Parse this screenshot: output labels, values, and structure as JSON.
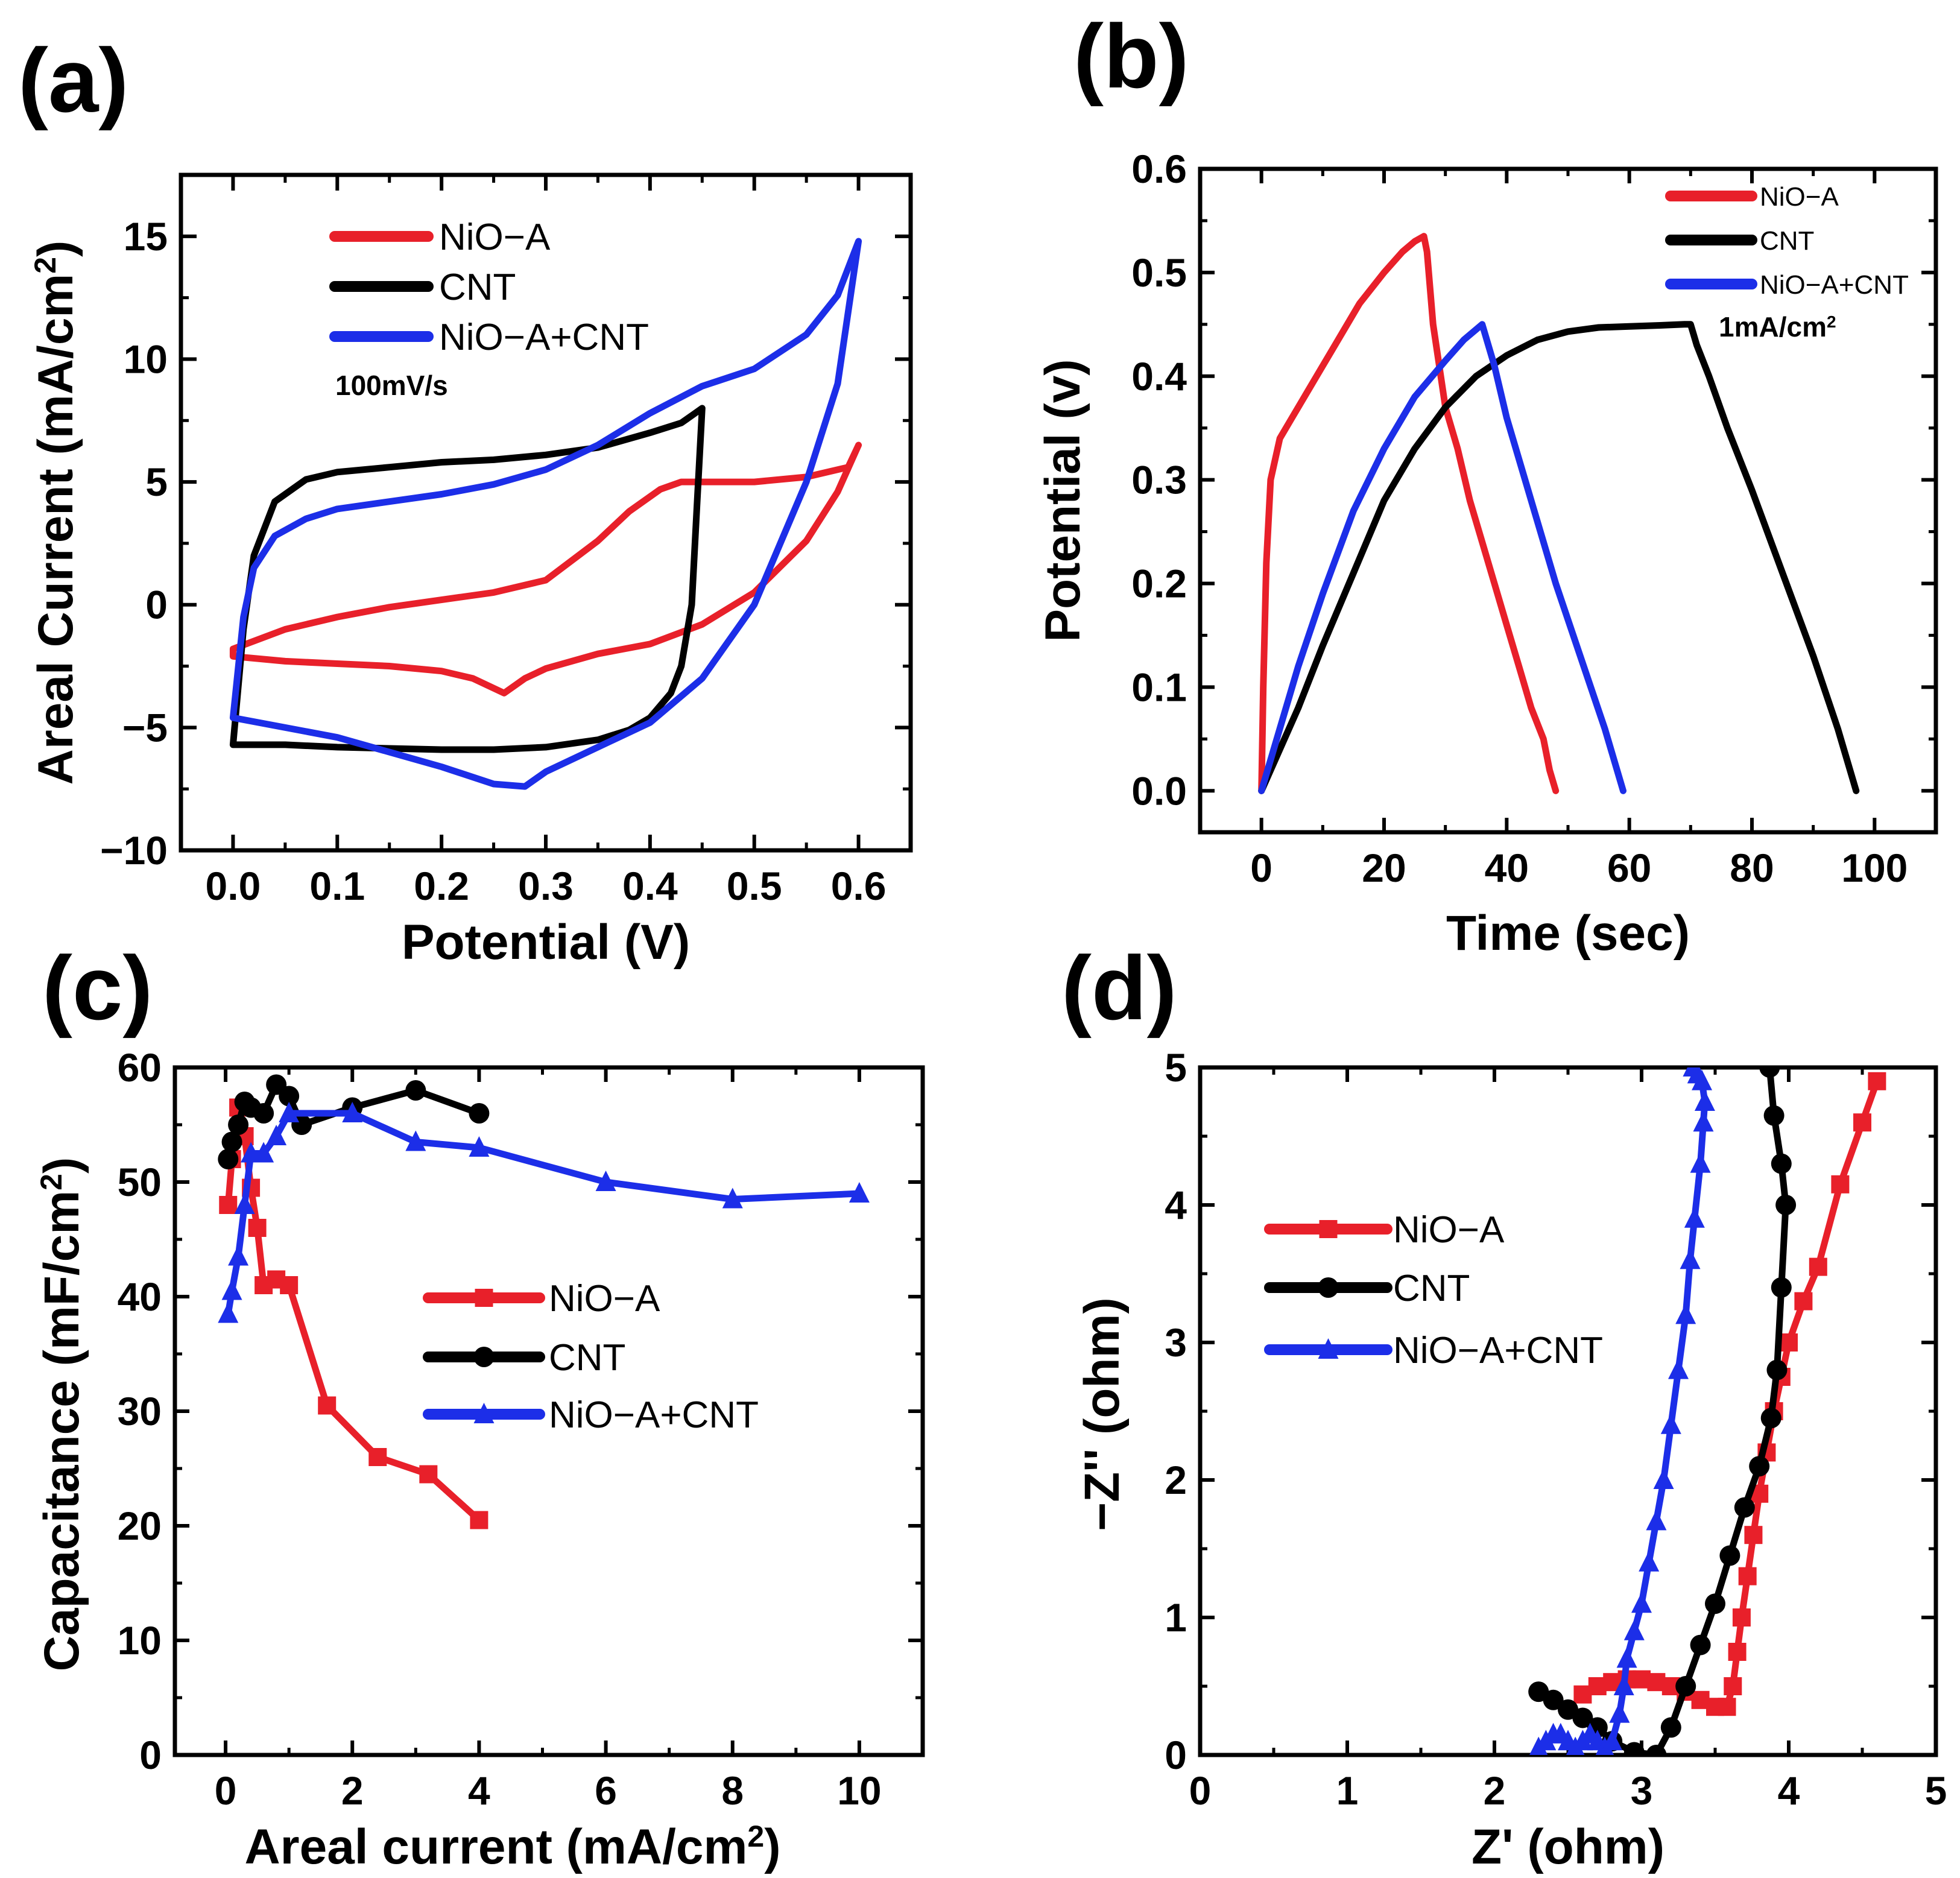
{
  "colors": {
    "red": "#e8202a",
    "black": "#000000",
    "blue": "#1c2ee8"
  },
  "panel_labels": [
    "(a)",
    "(b)",
    "(c)",
    "(d)"
  ],
  "chart_data": [
    {
      "id": "a",
      "type": "line",
      "xlabel": "Potential (V)",
      "ylabel": "Areal Current (mA/cm",
      "ylabel_sup": "2",
      "ylabel_end": ")",
      "xlim": [
        -0.05,
        0.65
      ],
      "ylim": [
        -10,
        17.5
      ],
      "xticks": [
        0.0,
        0.1,
        0.2,
        0.3,
        0.4,
        0.5,
        0.6
      ],
      "xtick_labels": [
        "0.0",
        "0.1",
        "0.2",
        "0.3",
        "0.4",
        "0.5",
        "0.6"
      ],
      "yticks": [
        -10,
        -5,
        0,
        5,
        10,
        15
      ],
      "ytick_labels": [
        "−10",
        "−5",
        "0",
        "5",
        "10",
        "15"
      ],
      "annotation": "100mV/s",
      "legend": [
        "NiO−A",
        "CNT",
        "NiO−A+CNT"
      ],
      "series": [
        {
          "name": "NiO−A",
          "color": "red",
          "closed": true,
          "x": [
            0.0,
            0.05,
            0.1,
            0.15,
            0.2,
            0.25,
            0.3,
            0.35,
            0.38,
            0.41,
            0.43,
            0.45,
            0.5,
            0.55,
            0.59,
            0.6,
            0.58,
            0.55,
            0.5,
            0.45,
            0.4,
            0.35,
            0.3,
            0.28,
            0.26,
            0.23,
            0.2,
            0.15,
            0.1,
            0.05,
            0.0
          ],
          "y": [
            -1.8,
            -1.0,
            -0.5,
            -0.1,
            0.2,
            0.5,
            1.0,
            2.6,
            3.8,
            4.7,
            5.0,
            5.0,
            5.0,
            5.2,
            5.6,
            6.5,
            4.6,
            2.6,
            0.5,
            -0.8,
            -1.6,
            -2.0,
            -2.6,
            -3.0,
            -3.6,
            -3.0,
            -2.7,
            -2.5,
            -2.4,
            -2.3,
            -2.1
          ]
        },
        {
          "name": "CNT",
          "color": "black",
          "closed": true,
          "x": [
            0.0,
            0.01,
            0.02,
            0.04,
            0.07,
            0.1,
            0.15,
            0.2,
            0.25,
            0.3,
            0.35,
            0.4,
            0.43,
            0.45,
            0.445,
            0.44,
            0.43,
            0.42,
            0.4,
            0.38,
            0.35,
            0.3,
            0.25,
            0.2,
            0.1,
            0.05,
            0.0
          ],
          "y": [
            -5.7,
            -1.0,
            2.0,
            4.2,
            5.1,
            5.4,
            5.6,
            5.8,
            5.9,
            6.1,
            6.4,
            7.0,
            7.4,
            8.0,
            4.0,
            0.0,
            -2.5,
            -3.6,
            -4.6,
            -5.1,
            -5.5,
            -5.8,
            -5.9,
            -5.9,
            -5.8,
            -5.7,
            -5.7
          ]
        },
        {
          "name": "NiO−A+CNT",
          "color": "blue",
          "closed": true,
          "x": [
            0.0,
            0.01,
            0.02,
            0.04,
            0.07,
            0.1,
            0.15,
            0.2,
            0.25,
            0.3,
            0.35,
            0.4,
            0.45,
            0.5,
            0.55,
            0.58,
            0.6,
            0.58,
            0.55,
            0.5,
            0.45,
            0.4,
            0.35,
            0.3,
            0.28,
            0.25,
            0.2,
            0.15,
            0.1,
            0.05,
            0.0
          ],
          "y": [
            -4.6,
            -0.5,
            1.5,
            2.8,
            3.5,
            3.9,
            4.2,
            4.5,
            4.9,
            5.5,
            6.5,
            7.8,
            8.9,
            9.6,
            11.0,
            12.6,
            14.8,
            9.0,
            5.0,
            0.0,
            -3.0,
            -4.8,
            -5.8,
            -6.8,
            -7.4,
            -7.3,
            -6.6,
            -6.0,
            -5.4,
            -5.0,
            -4.6
          ]
        }
      ]
    },
    {
      "id": "b",
      "type": "line",
      "xlabel": "Time (sec)",
      "ylabel": "Potential (v)",
      "xlim": [
        -10,
        110
      ],
      "ylim": [
        -0.04,
        0.6
      ],
      "xticks": [
        0,
        20,
        40,
        60,
        80,
        100
      ],
      "xtick_labels": [
        "0",
        "20",
        "40",
        "60",
        "80",
        "100"
      ],
      "yticks": [
        0.0,
        0.1,
        0.2,
        0.3,
        0.4,
        0.5,
        0.6
      ],
      "ytick_labels": [
        "0.0",
        "0.1",
        "0.2",
        "0.3",
        "0.4",
        "0.5",
        "0.6"
      ],
      "annotation": "1mA/cm",
      "annotation_sup": "2",
      "legend": [
        "NiO−A",
        "CNT",
        "NiO−A+CNT"
      ],
      "series": [
        {
          "name": "NiO−A",
          "color": "red",
          "x": [
            0,
            0.3,
            0.8,
            1.5,
            3,
            5,
            8,
            12,
            16,
            20,
            23,
            25,
            26.5,
            27,
            28,
            30,
            32,
            34,
            36,
            38,
            40,
            42,
            44,
            46,
            47,
            48
          ],
          "y": [
            0.0,
            0.1,
            0.22,
            0.3,
            0.34,
            0.36,
            0.39,
            0.43,
            0.47,
            0.5,
            0.52,
            0.53,
            0.535,
            0.52,
            0.45,
            0.37,
            0.33,
            0.28,
            0.24,
            0.2,
            0.16,
            0.12,
            0.08,
            0.05,
            0.02,
            0.0
          ]
        },
        {
          "name": "CNT",
          "color": "black",
          "x": [
            0,
            3,
            6,
            10,
            15,
            20,
            25,
            30,
            35,
            40,
            45,
            50,
            55,
            60,
            65,
            69,
            70,
            71,
            73,
            76,
            80,
            85,
            90,
            94,
            97
          ],
          "y": [
            0.0,
            0.04,
            0.08,
            0.14,
            0.21,
            0.28,
            0.33,
            0.37,
            0.4,
            0.42,
            0.435,
            0.443,
            0.447,
            0.448,
            0.449,
            0.45,
            0.45,
            0.43,
            0.4,
            0.35,
            0.29,
            0.21,
            0.13,
            0.06,
            0.0
          ]
        },
        {
          "name": "NiO−A+CNT",
          "color": "blue",
          "x": [
            0,
            3,
            6,
            10,
            15,
            20,
            25,
            30,
            33,
            35,
            36,
            38,
            40,
            44,
            48,
            52,
            56,
            59
          ],
          "y": [
            0.0,
            0.06,
            0.12,
            0.19,
            0.27,
            0.33,
            0.38,
            0.415,
            0.435,
            0.445,
            0.45,
            0.41,
            0.36,
            0.28,
            0.2,
            0.13,
            0.06,
            0.0
          ]
        }
      ]
    },
    {
      "id": "c",
      "type": "scatter",
      "xlabel": "Areal current (mA/cm",
      "xlabel_sup": "2",
      "xlabel_end": ")",
      "ylabel": "Capacitance (mF/cm",
      "ylabel_sup": "2",
      "ylabel_end": ")",
      "xlim": [
        -0.8,
        11.0
      ],
      "ylim": [
        0,
        60
      ],
      "xticks": [
        0,
        2,
        4,
        6,
        8,
        10
      ],
      "xtick_labels": [
        "0",
        "2",
        "4",
        "6",
        "8",
        "10"
      ],
      "yticks": [
        0,
        10,
        20,
        30,
        40,
        50,
        60
      ],
      "ytick_labels": [
        "0",
        "10",
        "20",
        "30",
        "40",
        "50",
        "60"
      ],
      "legend": [
        "NiO−A",
        "CNT",
        "NiO−A+CNT"
      ],
      "series": [
        {
          "name": "NiO−A",
          "color": "red",
          "marker": "square",
          "x": [
            0.04,
            0.1,
            0.2,
            0.3,
            0.4,
            0.5,
            0.6,
            0.8,
            1.0,
            1.6,
            2.4,
            3.2,
            4.0
          ],
          "y": [
            48.0,
            52.0,
            56.5,
            54.0,
            49.5,
            46.0,
            41.0,
            41.5,
            41.0,
            30.5,
            26.0,
            24.5,
            20.5
          ]
        },
        {
          "name": "CNT",
          "color": "black",
          "marker": "diamond",
          "x": [
            0.04,
            0.1,
            0.2,
            0.3,
            0.4,
            0.6,
            0.8,
            1.0,
            1.2,
            2.0,
            3.0,
            4.0
          ],
          "y": [
            52.0,
            53.5,
            55.0,
            57.0,
            56.5,
            56.0,
            58.5,
            57.5,
            55.0,
            56.5,
            58.0,
            56.0
          ]
        },
        {
          "name": "NiO−A+CNT",
          "color": "blue",
          "marker": "triangle",
          "x": [
            0.04,
            0.1,
            0.2,
            0.3,
            0.4,
            0.6,
            0.8,
            1.0,
            2.0,
            3.0,
            4.0,
            6.0,
            8.0,
            10.0
          ],
          "y": [
            38.5,
            40.5,
            43.5,
            48.0,
            52.5,
            52.5,
            54.0,
            56.0,
            56.0,
            53.5,
            53.0,
            50.0,
            48.5,
            49.0
          ]
        }
      ]
    },
    {
      "id": "d",
      "type": "scatter",
      "xlabel": "Z' (ohm)",
      "ylabel": "−Z'' (ohm)",
      "xlim": [
        0,
        5
      ],
      "ylim": [
        0,
        5
      ],
      "xticks": [
        0,
        1,
        2,
        3,
        4,
        5
      ],
      "xtick_labels": [
        "0",
        "1",
        "2",
        "3",
        "4",
        "5"
      ],
      "yticks": [
        0,
        1,
        2,
        3,
        4,
        5
      ],
      "ytick_labels": [
        "0",
        "1",
        "2",
        "3",
        "4",
        "5"
      ],
      "legend": [
        "NiO−A",
        "CNT",
        "NiO−A+CNT"
      ],
      "series": [
        {
          "name": "NiO−A",
          "color": "red",
          "marker": "square",
          "x": [
            2.6,
            2.7,
            2.8,
            2.9,
            3.0,
            3.1,
            3.2,
            3.3,
            3.4,
            3.5,
            3.58,
            3.62,
            3.65,
            3.68,
            3.72,
            3.76,
            3.8,
            3.85,
            3.9,
            3.95,
            4.0,
            4.1,
            4.2,
            4.35,
            4.5,
            4.6
          ],
          "y": [
            0.44,
            0.5,
            0.53,
            0.55,
            0.55,
            0.53,
            0.5,
            0.46,
            0.4,
            0.35,
            0.35,
            0.5,
            0.75,
            1.0,
            1.3,
            1.6,
            1.9,
            2.2,
            2.5,
            2.75,
            3.0,
            3.3,
            3.55,
            4.15,
            4.6,
            4.9
          ]
        },
        {
          "name": "CNT",
          "color": "black",
          "marker": "diamond",
          "x": [
            2.3,
            2.4,
            2.5,
            2.6,
            2.7,
            2.8,
            2.95,
            3.1,
            3.2,
            3.3,
            3.4,
            3.5,
            3.6,
            3.7,
            3.8,
            3.88,
            3.92,
            3.95,
            3.98,
            3.95,
            3.9,
            3.87
          ],
          "y": [
            0.46,
            0.4,
            0.33,
            0.27,
            0.2,
            0.1,
            0.02,
            0.0,
            0.2,
            0.5,
            0.8,
            1.1,
            1.45,
            1.8,
            2.1,
            2.45,
            2.8,
            3.4,
            4.0,
            4.3,
            4.65,
            5.0
          ]
        },
        {
          "name": "NiO−A+CNT",
          "color": "blue",
          "marker": "triangle",
          "x": [
            2.3,
            2.35,
            2.4,
            2.45,
            2.5,
            2.55,
            2.6,
            2.65,
            2.7,
            2.75,
            2.8,
            2.85,
            2.88,
            2.9,
            2.95,
            3.0,
            3.05,
            3.1,
            3.15,
            3.2,
            3.25,
            3.3,
            3.33,
            3.36,
            3.4,
            3.42,
            3.43,
            3.41,
            3.38,
            3.35
          ],
          "y": [
            0.05,
            0.1,
            0.15,
            0.15,
            0.1,
            0.05,
            0.1,
            0.15,
            0.1,
            0.05,
            0.1,
            0.3,
            0.5,
            0.7,
            0.9,
            1.1,
            1.4,
            1.7,
            2.0,
            2.4,
            2.8,
            3.2,
            3.6,
            3.9,
            4.3,
            4.6,
            4.75,
            4.9,
            4.95,
            5.0
          ]
        }
      ]
    }
  ]
}
